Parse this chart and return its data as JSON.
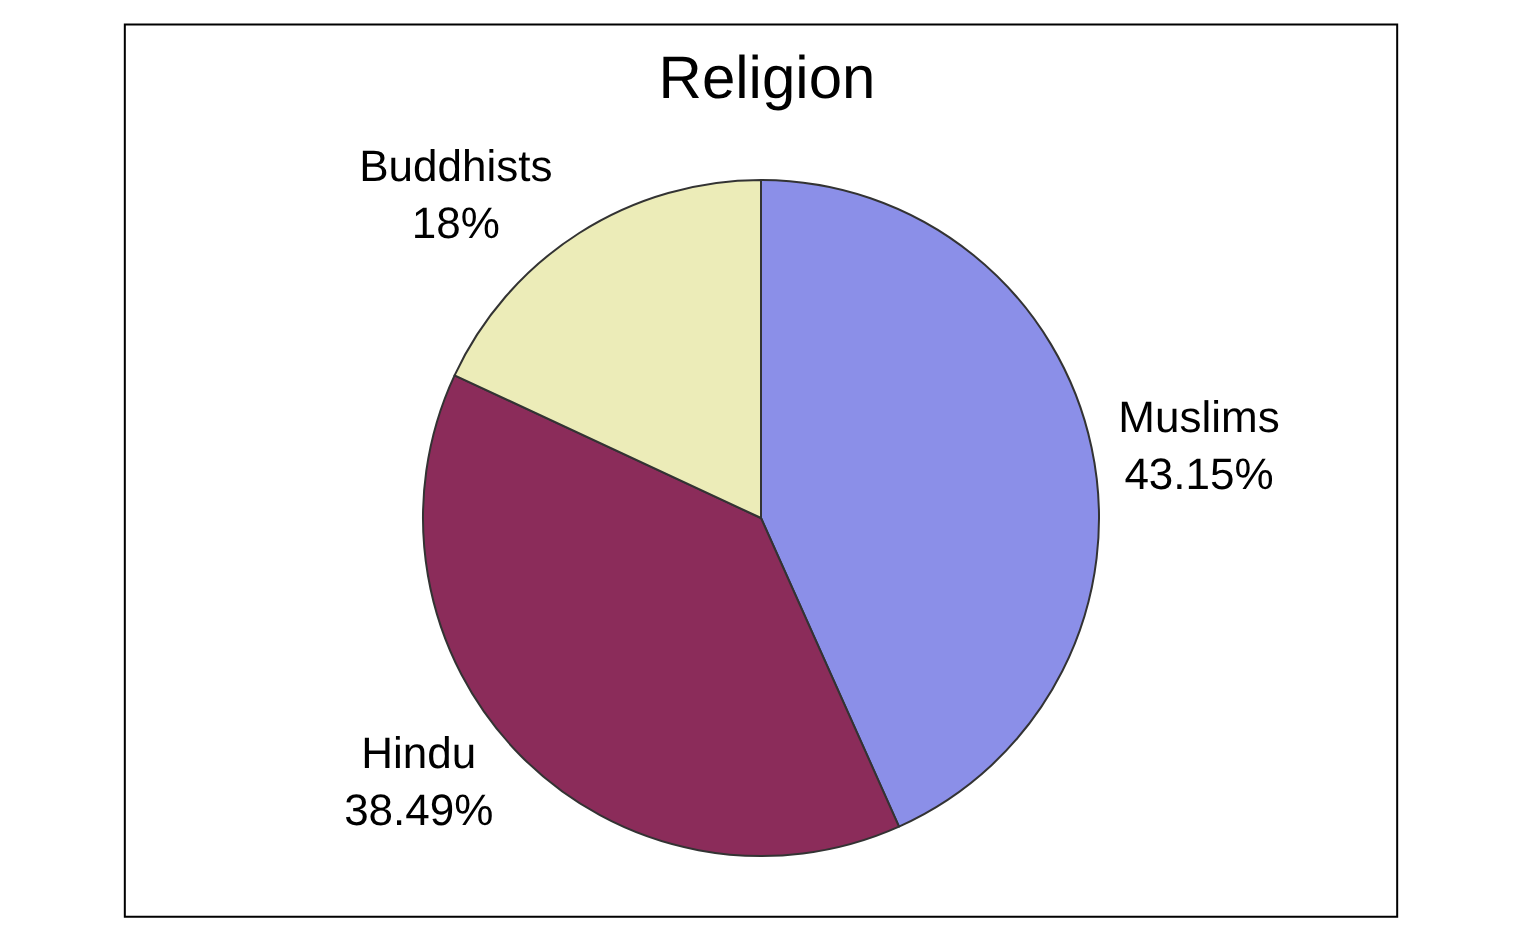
{
  "chart_data": {
    "type": "pie",
    "title": "Religion",
    "categories": [
      "Muslims",
      "Hindu",
      "Buddhists"
    ],
    "values": [
      43.15,
      38.49,
      18
    ],
    "value_labels": [
      "43.15%",
      "38.49%",
      "18%"
    ],
    "colors": [
      "#8b8fe8",
      "#8b2c5a",
      "#ececb8"
    ],
    "legend": false
  }
}
